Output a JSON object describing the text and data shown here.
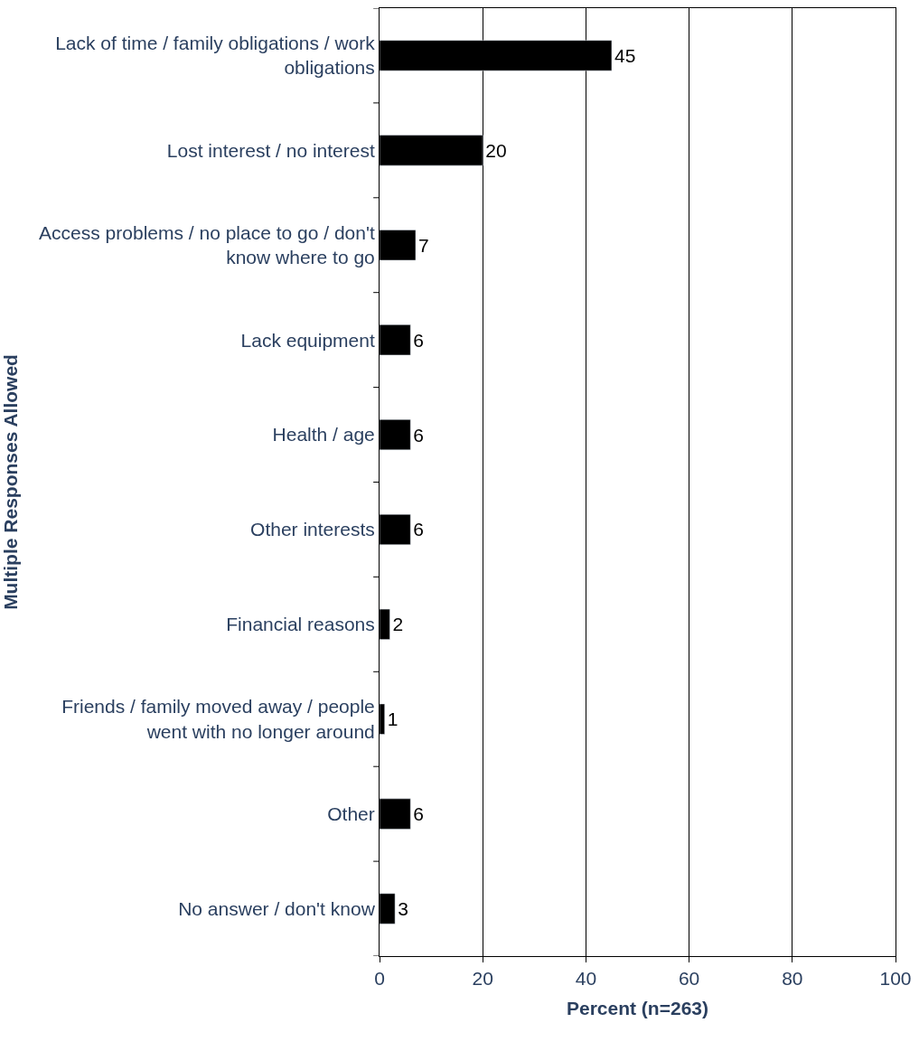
{
  "chart_data": {
    "type": "bar",
    "orientation": "horizontal",
    "xlabel": "Percent (n=263)",
    "ylabel": "Multiple Responses Allowed",
    "categories": [
      "Lack of time / family obligations / work obligations",
      "Lost interest / no interest",
      "Access problems / no place to go / don't know where to go",
      "Lack equipment",
      "Health / age",
      "Other interests",
      "Financial reasons",
      "Friends / family moved away / people went with no longer around",
      "Other",
      "No answer / don't know"
    ],
    "values": [
      45,
      20,
      7,
      6,
      6,
      6,
      2,
      1,
      6,
      3
    ],
    "color": "#000000",
    "data_labels": true,
    "xlim": [
      0,
      100
    ],
    "xticks": [
      0,
      20,
      40,
      60,
      80,
      100
    ],
    "grid": "x",
    "legend": false
  }
}
